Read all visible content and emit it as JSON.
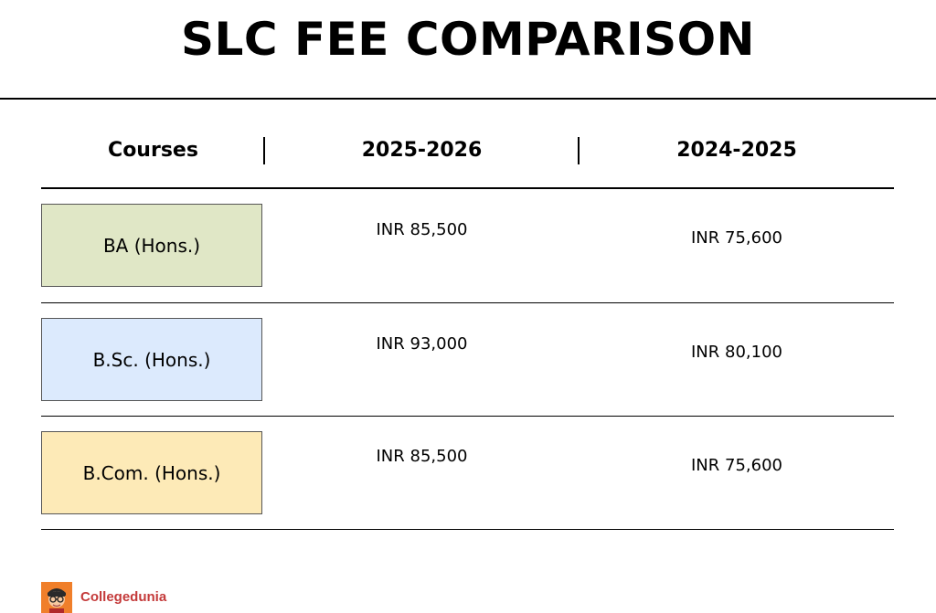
{
  "title": "SLC FEE COMPARISON",
  "brand": {
    "name": "Collegedunia",
    "logo_icon": "student-avatar-icon",
    "color": "#c43a3a"
  },
  "chart_data": {
    "type": "table",
    "title": "SLC FEE COMPARISON",
    "columns": [
      "Courses",
      "2025-2026",
      "2024-2025"
    ],
    "rows": [
      {
        "course": "BA (Hons.)",
        "fee_2025_2026": "INR 85,500",
        "fee_2024_2025": "INR 75,600",
        "color": "#e0e7c6"
      },
      {
        "course": "B.Sc. (Hons.)",
        "fee_2025_2026": "INR 93,000",
        "fee_2024_2025": "INR 80,100",
        "color": "#dceafd"
      },
      {
        "course": "B.Com. (Hons.)",
        "fee_2025_2026": "INR 85,500",
        "fee_2024_2025": "INR 75,600",
        "color": "#fdeab7"
      }
    ]
  }
}
